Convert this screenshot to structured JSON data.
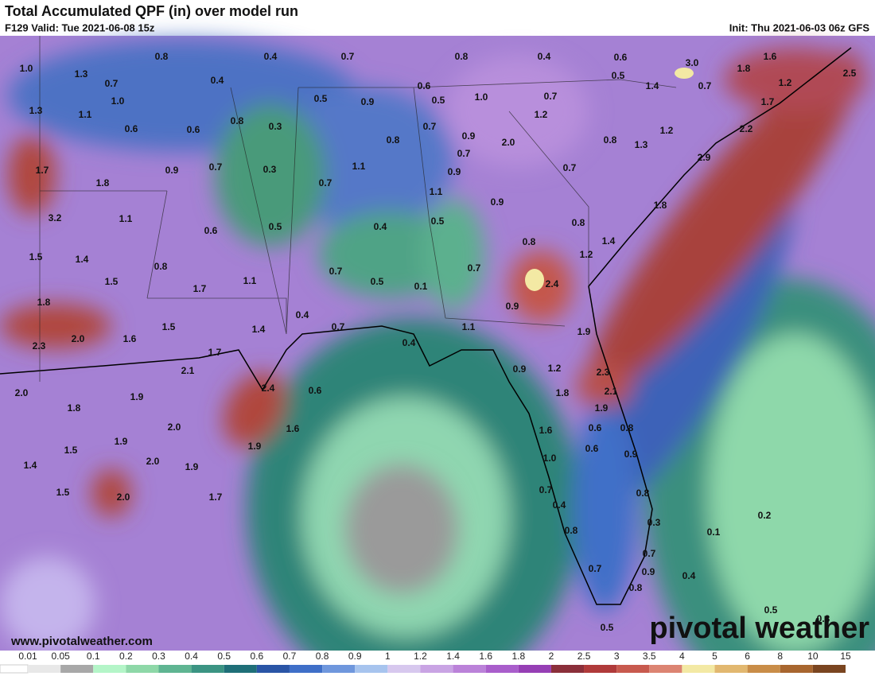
{
  "header": {
    "title": "Total Accumulated QPF (in) over model run",
    "valid": "F129 Valid: Tue 2021-06-08 15z",
    "init": "Init: Thu 2021-06-03 06z GFS"
  },
  "map": {
    "labels": [
      "1.0",
      "0.8",
      "0.4",
      "0.7",
      "0.8",
      "0.4",
      "0.6",
      "3.0",
      "1.6",
      "2.5",
      "1.3",
      "0.7",
      "0.4",
      "0.6",
      "0.5",
      "1.4",
      "0.7",
      "1.8",
      "1.2",
      "1.3",
      "1.0",
      "1.1",
      "0.5",
      "0.9",
      "0.5",
      "1.0",
      "0.7",
      "1.7",
      "0.6",
      "0.6",
      "0.8",
      "0.3",
      "0.7",
      "0.9",
      "1.2",
      "1.2",
      "2.2",
      "0.8",
      "0.7",
      "2.0",
      "0.8",
      "1.3",
      "2.9",
      "1.7",
      "0.9",
      "0.7",
      "0.3",
      "1.1",
      "0.9",
      "0.7",
      "1.8",
      "0.7",
      "1.1",
      "0.9",
      "1.8",
      "3.2",
      "1.1",
      "0.6",
      "0.5",
      "0.4",
      "0.5",
      "0.8",
      "0.8",
      "1.4",
      "1.5",
      "1.4",
      "1.2",
      "0.8",
      "0.7",
      "0.7",
      "1.5",
      "1.7",
      "1.1",
      "0.5",
      "0.1",
      "2.4",
      "1.8",
      "0.9",
      "1.5",
      "1.4",
      "0.4",
      "0.7",
      "1.1",
      "1.9",
      "2.3",
      "2.0",
      "1.6",
      "1.7",
      "0.4",
      "2.1",
      "0.9",
      "1.2",
      "2.3",
      "2.0",
      "2.4",
      "0.6",
      "1.8",
      "2.1",
      "1.9",
      "1.8",
      "1.9",
      "2.0",
      "1.6",
      "1.6",
      "0.6",
      "0.8",
      "1.9",
      "1.9",
      "1.5",
      "0.6",
      "0.9",
      "1.4",
      "2.0",
      "1.9",
      "1.0",
      "1.5",
      "2.0",
      "1.7",
      "0.7",
      "0.8",
      "0.4",
      "0.8",
      "0.3",
      "0.2",
      "0.1",
      "0.7",
      "0.7",
      "0.9",
      "0.4",
      "0.8",
      "0.5",
      "0.3",
      "0.5"
    ]
  },
  "footer": {
    "website": "www.pivotalweather.com",
    "brand": "pivotal weather"
  },
  "colorbar": {
    "labels": [
      "0.01",
      "0.05",
      "0.1",
      "0.2",
      "0.3",
      "0.4",
      "0.5",
      "0.6",
      "0.7",
      "0.8",
      "0.9",
      "1",
      "1.2",
      "1.4",
      "1.6",
      "1.8",
      "2",
      "2.5",
      "3",
      "3.5",
      "4",
      "5",
      "6",
      "8",
      "10",
      "15"
    ],
    "colors": [
      "#e8e8e8",
      "#a8a8a8",
      "#b4f5c8",
      "#8ed8a8",
      "#5fb592",
      "#3b9483",
      "#1f6f78",
      "#2a55a6",
      "#3f6fc8",
      "#6f97dd",
      "#a7c4ee",
      "#d7c8ee",
      "#c9a4e4",
      "#bb82d9",
      "#a95ecb",
      "#963fb5",
      "#8b2f3a",
      "#b03a3a",
      "#c85a4e",
      "#dc8472",
      "#f3e9a4",
      "#e2b870",
      "#c98d48",
      "#a8662f",
      "#7a4520"
    ]
  }
}
